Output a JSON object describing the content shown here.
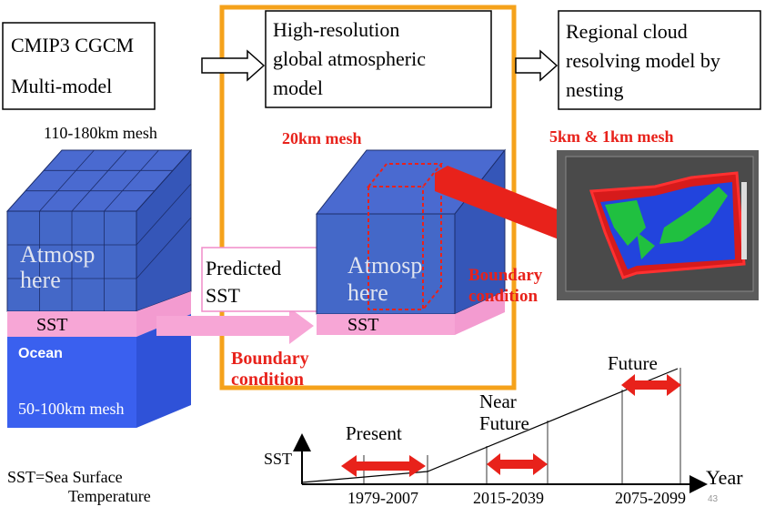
{
  "boxes": {
    "cmip3": {
      "lines": [
        "CMIP3 CGCM",
        "Multi-model"
      ]
    },
    "global": {
      "lines": [
        "High-resolution",
        "global atmospheric",
        "model"
      ]
    },
    "regional": {
      "lines": [
        "Regional cloud",
        "resolving model by",
        "nesting"
      ]
    }
  },
  "mesh_labels": {
    "left": "110-180km mesh",
    "middle": "20km mesh",
    "right": "5km & 1km mesh",
    "ocean": "50-100km mesh"
  },
  "left_cube": {
    "atmosphere": [
      "Atmosp",
      "here"
    ],
    "sst": "SST",
    "ocean": "Ocean"
  },
  "predicted": [
    "Predicted",
    "SST"
  ],
  "middle_cube": {
    "atmosphere": [
      "Atmosp",
      "here"
    ],
    "sst": "SST"
  },
  "boundary_middle": [
    "Boundary",
    "condition"
  ],
  "boundary_right": [
    "Boundary",
    "condition"
  ],
  "timeline": {
    "y_label": "SST",
    "x_label": "Year",
    "periods": [
      {
        "label": [
          "Present"
        ],
        "years": "1979-2007"
      },
      {
        "label": [
          "Near",
          "Future"
        ],
        "years": "2015-2039"
      },
      {
        "label": [
          "Future"
        ],
        "years": "2075-2099"
      }
    ]
  },
  "footnote": [
    "SST=Sea Surface",
    "Temperature"
  ],
  "page_number": "43"
}
